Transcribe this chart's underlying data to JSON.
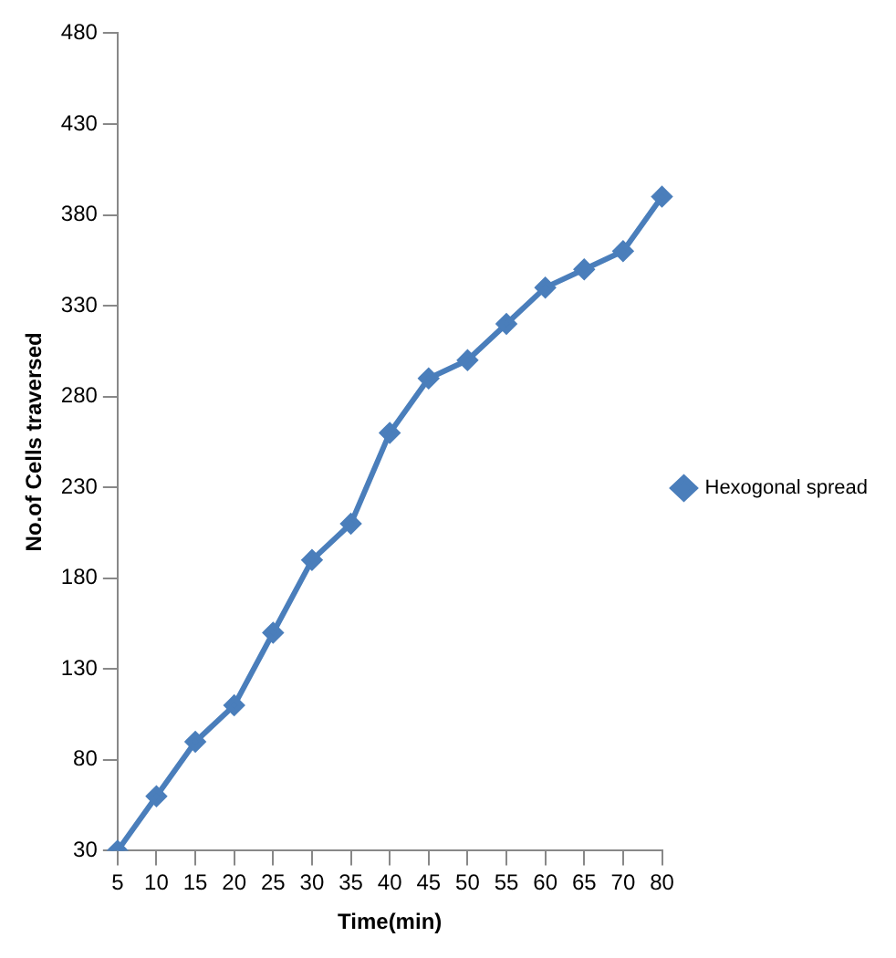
{
  "chart_data": {
    "type": "line",
    "xlabel": "Time(min)",
    "ylabel": "No.of Cells traversed",
    "categories": [
      "5",
      "10",
      "15",
      "20",
      "25",
      "30",
      "35",
      "40",
      "45",
      "50",
      "55",
      "60",
      "65",
      "70",
      "80"
    ],
    "series": [
      {
        "name": "Hexogonal spread",
        "color": "#4a7ebb",
        "values": [
          30,
          60,
          90,
          110,
          150,
          190,
          210,
          260,
          290,
          300,
          320,
          340,
          350,
          360,
          390
        ]
      }
    ],
    "ylim": [
      30,
      480
    ],
    "yticks": [
      30,
      80,
      130,
      180,
      230,
      280,
      330,
      380,
      430,
      480
    ],
    "grid": false,
    "legend": "right",
    "marker": "diamond",
    "line_style": "solid"
  }
}
